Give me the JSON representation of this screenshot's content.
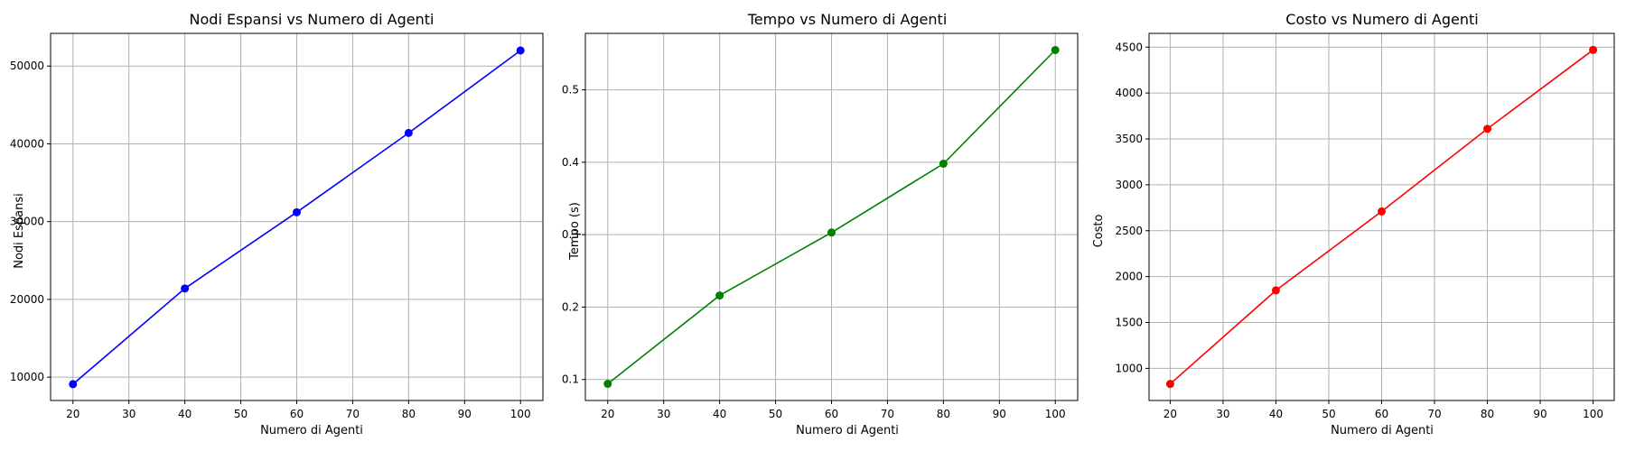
{
  "chart_data": [
    {
      "type": "line",
      "title": "Nodi Espansi vs Numero di Agenti",
      "xlabel": "Numero di Agenti",
      "ylabel": "Nodi Espansi",
      "x": [
        20,
        40,
        60,
        80,
        100
      ],
      "series": [
        {
          "values": [
            9100,
            21400,
            31200,
            41400,
            52000
          ]
        }
      ],
      "xlim": [
        16,
        104
      ],
      "ylim": [
        7000,
        54200
      ],
      "xticks": [
        20,
        30,
        40,
        50,
        60,
        70,
        80,
        90,
        100
      ],
      "yticks": [
        10000,
        20000,
        30000,
        40000,
        50000
      ],
      "ytick_decimals": 0,
      "grid": true,
      "marker": "circle",
      "color": "#0000ff"
    },
    {
      "type": "line",
      "title": "Tempo vs Numero di Agenti",
      "xlabel": "Numero di Agenti",
      "ylabel": "Tempo (s)",
      "x": [
        20,
        40,
        60,
        80,
        100
      ],
      "series": [
        {
          "values": [
            0.094,
            0.216,
            0.303,
            0.398,
            0.555
          ]
        }
      ],
      "xlim": [
        16,
        104
      ],
      "ylim": [
        0.071,
        0.578
      ],
      "xticks": [
        20,
        30,
        40,
        50,
        60,
        70,
        80,
        90,
        100
      ],
      "yticks": [
        0.1,
        0.2,
        0.3,
        0.4,
        0.5
      ],
      "ytick_decimals": 1,
      "grid": true,
      "marker": "circle",
      "color": "#008000"
    },
    {
      "type": "line",
      "title": "Costo vs Numero di Agenti",
      "xlabel": "Numero di Agenti",
      "ylabel": "Costo",
      "x": [
        20,
        40,
        60,
        80,
        100
      ],
      "series": [
        {
          "values": [
            830,
            1850,
            2710,
            3610,
            4470
          ]
        }
      ],
      "xlim": [
        16,
        104
      ],
      "ylim": [
        650,
        4650
      ],
      "xticks": [
        20,
        30,
        40,
        50,
        60,
        70,
        80,
        90,
        100
      ],
      "yticks": [
        1000,
        1500,
        2000,
        2500,
        3000,
        3500,
        4000,
        4500
      ],
      "ytick_decimals": 0,
      "grid": true,
      "marker": "circle",
      "color": "#ff0000"
    }
  ]
}
